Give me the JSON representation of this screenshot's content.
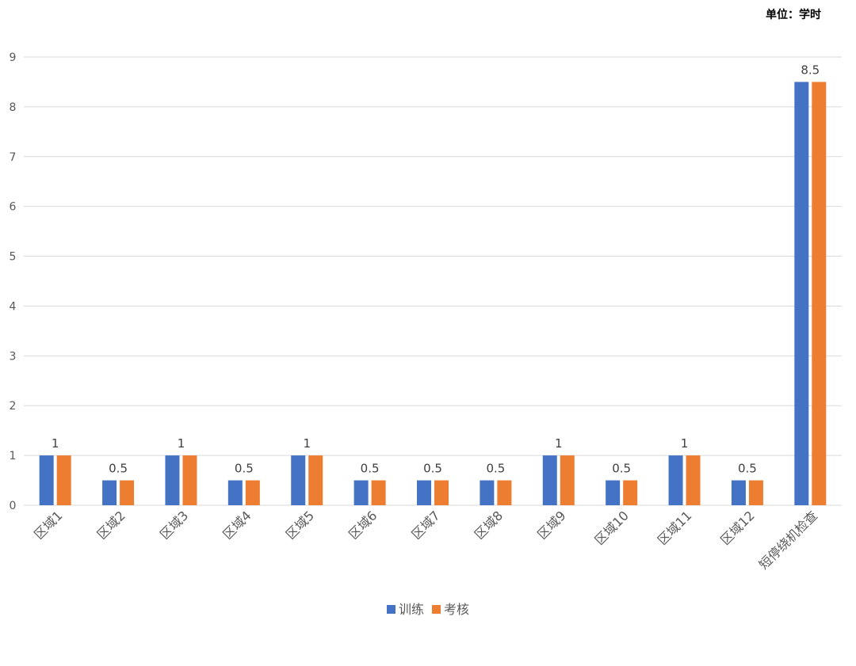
{
  "unit_label": "单位：学时",
  "chart_data": {
    "type": "bar",
    "unit": "单位：学时",
    "categories": [
      "区域1",
      "区域2",
      "区域3",
      "区域4",
      "区域5",
      "区域6",
      "区域7",
      "区域8",
      "区域9",
      "区域10",
      "区域11",
      "区域12",
      "短停绕机检查"
    ],
    "series": [
      {
        "name": "训练",
        "color": "#4472c4",
        "values": [
          1,
          0.5,
          1,
          0.5,
          1,
          0.5,
          0.5,
          0.5,
          1,
          0.5,
          1,
          0.5,
          8.5
        ]
      },
      {
        "name": "考核",
        "color": "#ed7d31",
        "values": [
          1,
          0.5,
          1,
          0.5,
          1,
          0.5,
          0.5,
          0.5,
          1,
          0.5,
          1,
          0.5,
          8.5
        ]
      }
    ],
    "data_labels": [
      "1",
      "0.5",
      "1",
      "0.5",
      "1",
      "0.5",
      "0.5",
      "0.5",
      "1",
      "0.5",
      "1",
      "0.5",
      "8.5"
    ],
    "y_ticks": [
      "0",
      "1",
      "2",
      "3",
      "4",
      "5",
      "6",
      "7",
      "8",
      "9"
    ],
    "ylim": [
      0,
      9
    ],
    "grid": true,
    "legend_position": "bottom"
  }
}
